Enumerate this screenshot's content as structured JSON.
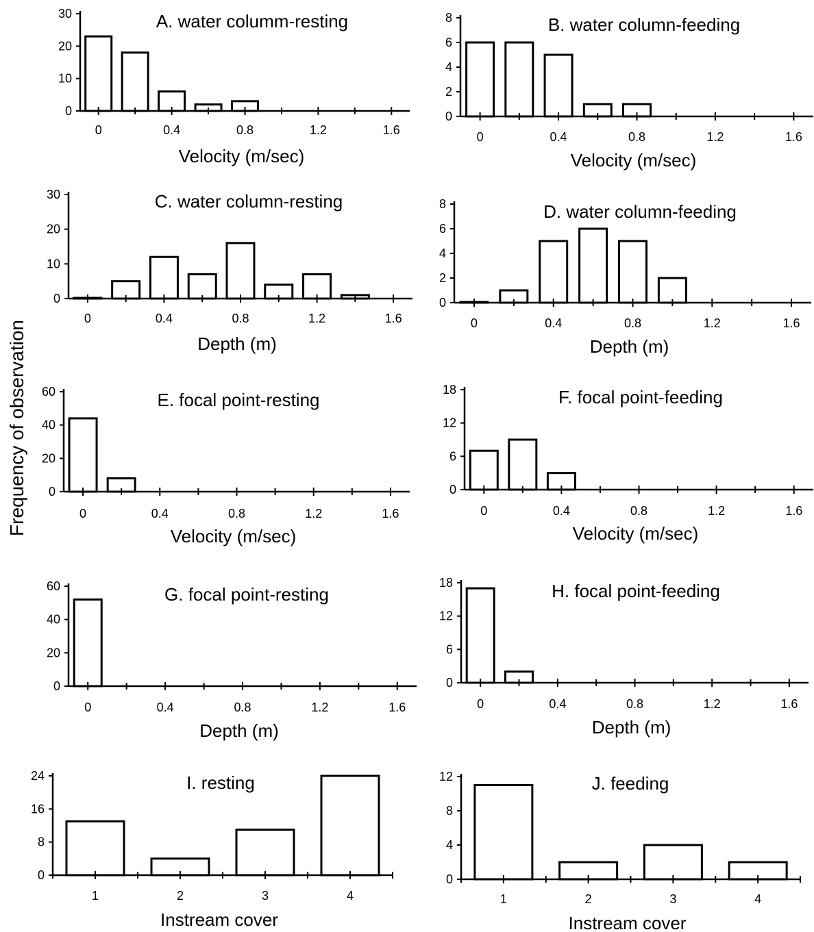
{
  "ylabel": "Frequency of observation",
  "chart_data": [
    {
      "type": "bar",
      "title": "A. water columm-resting",
      "xlabel": "Velocity (m/sec)",
      "x": [
        0,
        0.2,
        0.4,
        0.6,
        0.8
      ],
      "values": [
        23,
        18,
        6,
        2,
        3
      ],
      "xlim": [
        -0.1,
        1.7
      ],
      "ylim": [
        0,
        30
      ],
      "xticks": [
        0,
        0.4,
        0.8,
        1.2,
        1.6
      ],
      "xtick_labels": [
        "0",
        "0.4",
        "0.8",
        "1.2",
        "1.6"
      ],
      "yticks": [
        0,
        10,
        20,
        30
      ],
      "ytick_labels": [
        "0",
        "10",
        "20",
        "30"
      ]
    },
    {
      "type": "bar",
      "title": "B. water column-feeding",
      "xlabel": "Velocity (m/sec)",
      "x": [
        0,
        0.2,
        0.4,
        0.6,
        0.8
      ],
      "values": [
        6,
        6,
        5,
        1,
        1
      ],
      "xlim": [
        -0.1,
        1.7
      ],
      "ylim": [
        0,
        8
      ],
      "xticks": [
        0,
        0.4,
        0.8,
        1.2,
        1.6
      ],
      "xtick_labels": [
        "0",
        "0.4",
        "0.8",
        "1.2",
        "1.6"
      ],
      "yticks": [
        0,
        2,
        4,
        6,
        8
      ],
      "ytick_labels": [
        "0",
        "2",
        "4",
        "6",
        "8"
      ]
    },
    {
      "type": "bar",
      "title": "C. water column-resting",
      "xlabel": "Depth (m)",
      "x": [
        0,
        0.2,
        0.4,
        0.6,
        0.8,
        1.0,
        1.2,
        1.4
      ],
      "values": [
        0,
        5,
        12,
        7,
        16,
        4,
        7,
        1
      ],
      "xlim": [
        -0.1,
        1.7
      ],
      "ylim": [
        0,
        30
      ],
      "xticks": [
        0,
        0.4,
        0.8,
        1.2,
        1.6
      ],
      "xtick_labels": [
        "0",
        "0.4",
        "0.8",
        "1.2",
        "1.6"
      ],
      "yticks": [
        0,
        10,
        20,
        30
      ],
      "ytick_labels": [
        "0",
        "10",
        "20",
        "30"
      ]
    },
    {
      "type": "bar",
      "title": "D. water column-feeding",
      "xlabel": "Depth (m)",
      "x": [
        0,
        0.2,
        0.4,
        0.6,
        0.8,
        1.0
      ],
      "values": [
        0,
        1,
        5,
        6,
        5,
        2
      ],
      "xlim": [
        -0.1,
        1.7
      ],
      "ylim": [
        0,
        8
      ],
      "xticks": [
        0,
        0.4,
        0.8,
        1.2,
        1.6
      ],
      "xtick_labels": [
        "0",
        "0.4",
        "0.8",
        "1.2",
        "1.6"
      ],
      "yticks": [
        0,
        2,
        4,
        6,
        8
      ],
      "ytick_labels": [
        "0",
        "2",
        "4",
        "6",
        "8"
      ]
    },
    {
      "type": "bar",
      "title": "E. focal point-resting",
      "xlabel": "Velocity (m/sec)",
      "x": [
        0,
        0.2
      ],
      "values": [
        44,
        8
      ],
      "xlim": [
        -0.1,
        1.7
      ],
      "ylim": [
        0,
        60
      ],
      "xticks": [
        0,
        0.4,
        0.8,
        1.2,
        1.6
      ],
      "xtick_labels": [
        "0",
        "0.4",
        "0.8",
        "1.2",
        "1.6"
      ],
      "yticks": [
        0,
        20,
        40,
        60
      ],
      "ytick_labels": [
        "0",
        "20",
        "40",
        "60"
      ]
    },
    {
      "type": "bar",
      "title": "F. focal point-feeding",
      "xlabel": "Velocity (m/sec)",
      "x": [
        0,
        0.2,
        0.4
      ],
      "values": [
        7,
        9,
        3
      ],
      "xlim": [
        -0.1,
        1.7
      ],
      "ylim": [
        0,
        18
      ],
      "xticks": [
        0,
        0.4,
        0.8,
        1.2,
        1.6
      ],
      "xtick_labels": [
        "0",
        "0.4",
        "0.8",
        "1.2",
        "1.6"
      ],
      "yticks": [
        0,
        6,
        12,
        18
      ],
      "ytick_labels": [
        "0",
        "6",
        "12",
        "18"
      ]
    },
    {
      "type": "bar",
      "title": "G. focal point-resting",
      "xlabel": "Depth (m)",
      "x": [
        0
      ],
      "values": [
        52
      ],
      "xlim": [
        -0.1,
        1.7
      ],
      "ylim": [
        0,
        60
      ],
      "xticks": [
        0,
        0.4,
        0.8,
        1.2,
        1.6
      ],
      "xtick_labels": [
        "0",
        "0.4",
        "0.8",
        "1.2",
        "1.6"
      ],
      "yticks": [
        0,
        20,
        40,
        60
      ],
      "ytick_labels": [
        "0",
        "20",
        "40",
        "60"
      ]
    },
    {
      "type": "bar",
      "title": "H. focal point-feeding",
      "xlabel": "Depth (m)",
      "x": [
        0,
        0.2
      ],
      "values": [
        17,
        2
      ],
      "xlim": [
        -0.1,
        1.7
      ],
      "ylim": [
        0,
        18
      ],
      "xticks": [
        0,
        0.4,
        0.8,
        1.2,
        1.6
      ],
      "xtick_labels": [
        "0",
        "0.4",
        "0.8",
        "1.2",
        "1.6"
      ],
      "yticks": [
        0,
        6,
        12,
        18
      ],
      "ytick_labels": [
        "0",
        "6",
        "12",
        "18"
      ]
    },
    {
      "type": "bar",
      "title": "I. resting",
      "xlabel": "Instream cover",
      "x": [
        1,
        2,
        3,
        4
      ],
      "values": [
        13,
        4,
        11,
        24
      ],
      "xlim": [
        0.5,
        4.5
      ],
      "ylim": [
        0,
        24
      ],
      "xticks": [
        1,
        2,
        3,
        4
      ],
      "xtick_labels": [
        "1",
        "2",
        "3",
        "4"
      ],
      "yticks": [
        0,
        8,
        16,
        24
      ],
      "ytick_labels": [
        "0",
        "8",
        "16",
        "24"
      ]
    },
    {
      "type": "bar",
      "title": "J. feeding",
      "xlabel": "Instream cover",
      "x": [
        1,
        2,
        3,
        4
      ],
      "values": [
        11,
        2,
        4,
        2
      ],
      "xlim": [
        0.5,
        4.5
      ],
      "ylim": [
        0,
        12
      ],
      "xticks": [
        1,
        2,
        3,
        4
      ],
      "xtick_labels": [
        "1",
        "2",
        "3",
        "4"
      ],
      "yticks": [
        0,
        4,
        8,
        12
      ],
      "ytick_labels": [
        "0",
        "4",
        "8",
        "12"
      ]
    }
  ]
}
